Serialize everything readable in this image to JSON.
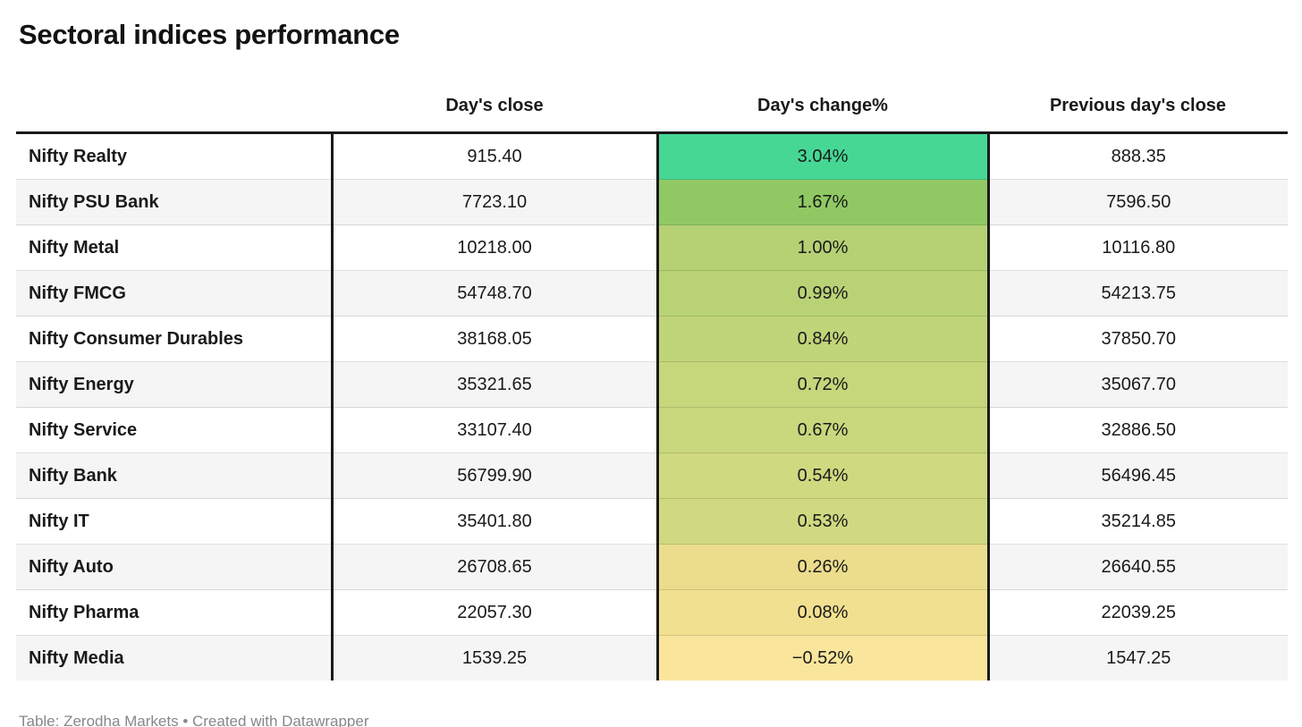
{
  "title": "Sectoral indices performance",
  "table": {
    "columns": [
      "",
      "Day's close",
      "Day's change%",
      "Previous day's close"
    ],
    "rows": [
      {
        "label": "Nifty Realty",
        "close": "915.40",
        "change": "3.04%",
        "change_color": "#46d795",
        "prev": "888.35"
      },
      {
        "label": "Nifty PSU Bank",
        "close": "7723.10",
        "change": "1.67%",
        "change_color": "#90c963",
        "prev": "7596.50"
      },
      {
        "label": "Nifty Metal",
        "close": "10218.00",
        "change": "1.00%",
        "change_color": "#b5d174",
        "prev": "10116.80"
      },
      {
        "label": "Nifty FMCG",
        "close": "54748.70",
        "change": "0.99%",
        "change_color": "#bad276",
        "prev": "54213.75"
      },
      {
        "label": "Nifty Consumer Durables",
        "close": "38168.05",
        "change": "0.84%",
        "change_color": "#c0d479",
        "prev": "37850.70"
      },
      {
        "label": "Nifty Energy",
        "close": "35321.65",
        "change": "0.72%",
        "change_color": "#c5d67b",
        "prev": "35067.70"
      },
      {
        "label": "Nifty Service",
        "close": "33107.40",
        "change": "0.67%",
        "change_color": "#c9d77d",
        "prev": "32886.50"
      },
      {
        "label": "Nifty Bank",
        "close": "56799.90",
        "change": "0.54%",
        "change_color": "#cfd980",
        "prev": "56496.45"
      },
      {
        "label": "Nifty IT",
        "close": "35401.80",
        "change": "0.53%",
        "change_color": "#d0d981",
        "prev": "35214.85"
      },
      {
        "label": "Nifty Auto",
        "close": "26708.65",
        "change": "0.26%",
        "change_color": "#ecdd8d",
        "prev": "26640.55"
      },
      {
        "label": "Nifty Pharma",
        "close": "22057.30",
        "change": "0.08%",
        "change_color": "#f2e091",
        "prev": "22039.25"
      },
      {
        "label": "Nifty Media",
        "close": "1539.25",
        "change": "−0.52%",
        "change_color": "#f9e69c",
        "prev": "1547.25"
      }
    ]
  },
  "footer": {
    "prefix": "Table: ",
    "source": "Zerodha Markets",
    "middle": " • Created with ",
    "tool": "Datawrapper"
  },
  "colors": {
    "border_heavy": "#1a1a1a",
    "row_alt": "#f5f5f5",
    "footer_text": "#878787",
    "change_max": "#46d795",
    "change_min": "#f9e69c"
  },
  "chart_data": {
    "type": "table",
    "title": "Sectoral indices performance",
    "categories": [
      "Nifty Realty",
      "Nifty PSU Bank",
      "Nifty Metal",
      "Nifty FMCG",
      "Nifty Consumer Durables",
      "Nifty Energy",
      "Nifty Service",
      "Nifty Bank",
      "Nifty IT",
      "Nifty Auto",
      "Nifty Pharma",
      "Nifty Media"
    ],
    "series": [
      {
        "name": "Day's close",
        "values": [
          915.4,
          7723.1,
          10218.0,
          54748.7,
          38168.05,
          35321.65,
          33107.4,
          56799.9,
          35401.8,
          26708.65,
          22057.3,
          1539.25
        ]
      },
      {
        "name": "Day's change%",
        "values": [
          3.04,
          1.67,
          1.0,
          0.99,
          0.84,
          0.72,
          0.67,
          0.54,
          0.53,
          0.26,
          0.08,
          -0.52
        ]
      },
      {
        "name": "Previous day's close",
        "values": [
          888.35,
          7596.5,
          10116.8,
          54213.75,
          37850.7,
          35067.7,
          32886.5,
          56496.45,
          35214.85,
          26640.55,
          22039.25,
          1547.25
        ]
      }
    ],
    "layout_hints": {
      "heatmap_column": "Day's change%",
      "heatmap_scale": "green (high) to yellow (low/negative)",
      "row_striping": true
    },
    "attribution": "Table: Zerodha Markets • Created with Datawrapper"
  }
}
